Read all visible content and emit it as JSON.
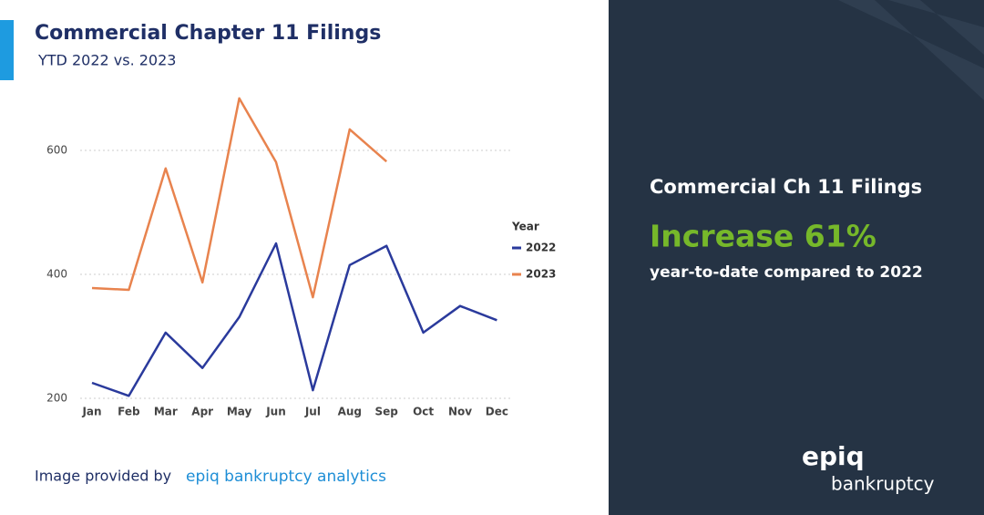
{
  "chart_data": {
    "type": "line",
    "title": "Commercial Chapter 11 Filings",
    "subtitle": "YTD 2022 vs. 2023",
    "categories": [
      "Jan",
      "Feb",
      "Mar",
      "Apr",
      "May",
      "Jun",
      "Jul",
      "Aug",
      "Sep",
      "Oct",
      "Nov",
      "Dec"
    ],
    "series": [
      {
        "name": "2022",
        "color": "#2a3a9c",
        "values": [
          225,
          204,
          306,
          249,
          331,
          450,
          213,
          415,
          446,
          306,
          349,
          326
        ]
      },
      {
        "name": "2023",
        "color": "#e8834e",
        "values": [
          378,
          375,
          571,
          387,
          684,
          581,
          363,
          634,
          582,
          null,
          null,
          null
        ]
      }
    ],
    "legend_title": "Year",
    "ylim": [
      200,
      700
    ],
    "yticks": [
      200,
      400,
      600
    ],
    "grid": true
  },
  "footer": {
    "prefix": "Image provided by",
    "brand": "epiq bankruptcy analytics"
  },
  "panel": {
    "heading": "Commercial Ch 11 Filings",
    "highlight": "Increase 61%",
    "note": "year-to-date compared to 2022"
  },
  "logo": {
    "top": "epiq",
    "bottom": "bankruptcy"
  }
}
